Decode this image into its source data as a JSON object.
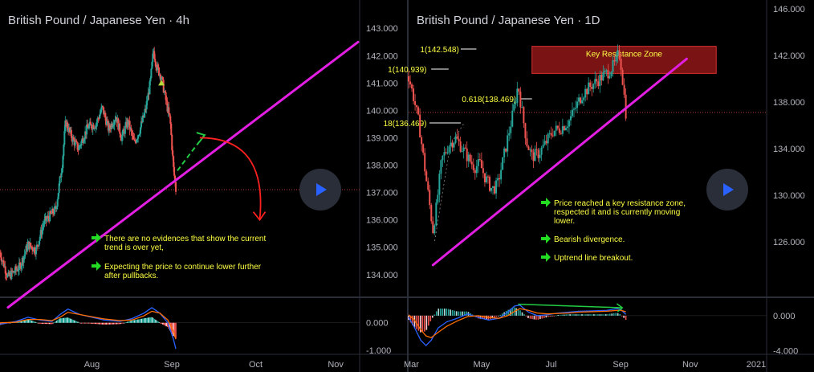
{
  "colors": {
    "background": "#000000",
    "panel_border": "#2a2e39",
    "axis_text": "#b2b5be",
    "title_text": "#d1d4dc",
    "candle_up": "#26a69a",
    "candle_down": "#ef5350",
    "trendline": "#e31ee3",
    "note_text": "#ffff44",
    "check_arrow": "#22dd22",
    "price_line": "#b83b3b",
    "macd": "#2962ff",
    "signal": "#ff6d00",
    "forecast_red": "#ff2020",
    "forecast_green": "#22cc44",
    "zone_fill": "#7a1414",
    "zone_border": "#d83030",
    "zone_text": "#ffff44",
    "fib_text": "#ffff44",
    "play_bg": "#2a2e39",
    "play_icon": "#2962ff"
  },
  "icons": {
    "play": "play-icon",
    "check": "check-arrow-icon"
  },
  "chart_data": [
    {
      "type": "candlestick",
      "title": "British Pound / Japanese Yen · 4h",
      "y_ticks": [
        "143.000",
        "142.000",
        "141.000",
        "140.000",
        "139.000",
        "138.000",
        "137.000",
        "136.000",
        "135.000",
        "134.000"
      ],
      "y_tick_values": [
        143,
        142,
        141,
        140,
        139,
        138,
        137,
        136,
        135,
        134
      ],
      "ylim": [
        133.2,
        143.8
      ],
      "x_ticks": [
        "Aug",
        "Sep",
        "Oct",
        "Nov"
      ],
      "x_tick_positions": [
        1.15,
        2.15,
        3.2,
        4.2
      ],
      "xlim": [
        0,
        4.5
      ],
      "last_price": 137.1,
      "trendline": [
        [
          0.1,
          132.8
        ],
        [
          4.48,
          142.5
        ]
      ],
      "series_path": [
        [
          0.0,
          134.8
        ],
        [
          0.1,
          133.9
        ],
        [
          0.25,
          134.3
        ],
        [
          0.35,
          135.1
        ],
        [
          0.45,
          134.9
        ],
        [
          0.55,
          135.9
        ],
        [
          0.7,
          136.4
        ],
        [
          0.78,
          138.1
        ],
        [
          0.82,
          139.6
        ],
        [
          0.9,
          139.0
        ],
        [
          0.98,
          138.6
        ],
        [
          1.1,
          139.4
        ],
        [
          1.2,
          139.5
        ],
        [
          1.28,
          140.1
        ],
        [
          1.36,
          139.3
        ],
        [
          1.45,
          139.8
        ],
        [
          1.52,
          139.0
        ],
        [
          1.6,
          139.6
        ],
        [
          1.68,
          138.8
        ],
        [
          1.75,
          139.3
        ],
        [
          1.82,
          140.0
        ],
        [
          1.88,
          141.0
        ],
        [
          1.92,
          142.2
        ],
        [
          1.96,
          141.6
        ],
        [
          2.02,
          141.2
        ],
        [
          2.08,
          140.3
        ],
        [
          2.13,
          139.6
        ],
        [
          2.17,
          137.9
        ],
        [
          2.2,
          137.1
        ]
      ],
      "up_arrow_marker": [
        2.02,
        141.0
      ],
      "forecast_green_path": [
        [
          2.22,
          137.8
        ],
        [
          2.4,
          138.5
        ],
        [
          2.56,
          139.1
        ]
      ],
      "forecast_red_arc": {
        "start": [
          2.5,
          139.0
        ],
        "control": [
          3.35,
          139.0
        ],
        "end": [
          3.25,
          136.0
        ]
      },
      "notes": [
        {
          "text_lines": [
            "There are no evidences that show the current",
            "trend is over yet,"
          ]
        },
        {
          "text_lines": [
            "Expecting the price to continue lower further",
            "after pullbacks."
          ]
        }
      ],
      "indicator": {
        "name": "MACD",
        "y_ticks": [
          "0.000",
          "-1.000"
        ],
        "y_tick_values": [
          0,
          -1
        ],
        "ylim": [
          -1.15,
          0.9
        ],
        "macd": [
          [
            0.0,
            -0.05
          ],
          [
            0.2,
            0.05
          ],
          [
            0.35,
            0.2
          ],
          [
            0.5,
            0.1
          ],
          [
            0.65,
            0.05
          ],
          [
            0.75,
            0.3
          ],
          [
            0.85,
            0.5
          ],
          [
            1.0,
            0.3
          ],
          [
            1.15,
            0.2
          ],
          [
            1.3,
            0.1
          ],
          [
            1.5,
            0.05
          ],
          [
            1.65,
            0.15
          ],
          [
            1.8,
            0.35
          ],
          [
            1.9,
            0.55
          ],
          [
            2.0,
            0.35
          ],
          [
            2.1,
            0.0
          ],
          [
            2.17,
            -0.6
          ],
          [
            2.2,
            -0.95
          ]
        ],
        "signal": [
          [
            0.0,
            0.0
          ],
          [
            0.2,
            0.02
          ],
          [
            0.35,
            0.12
          ],
          [
            0.5,
            0.12
          ],
          [
            0.65,
            0.08
          ],
          [
            0.75,
            0.2
          ],
          [
            0.85,
            0.38
          ],
          [
            1.0,
            0.3
          ],
          [
            1.15,
            0.22
          ],
          [
            1.3,
            0.14
          ],
          [
            1.5,
            0.08
          ],
          [
            1.65,
            0.1
          ],
          [
            1.8,
            0.25
          ],
          [
            1.9,
            0.42
          ],
          [
            2.0,
            0.35
          ],
          [
            2.1,
            0.1
          ],
          [
            2.17,
            -0.3
          ],
          [
            2.2,
            -0.6
          ]
        ]
      }
    },
    {
      "type": "candlestick",
      "title": "British Pound / Japanese Yen · 1D",
      "y_ticks": [
        "146.000",
        "142.000",
        "138.000",
        "134.000",
        "130.000",
        "126.000"
      ],
      "y_tick_values": [
        146,
        142,
        138,
        134,
        130,
        126
      ],
      "ylim": [
        121.3,
        146.2
      ],
      "x_ticks": [
        "Mar",
        "May",
        "Jul",
        "Sep",
        "Nov",
        "2021"
      ],
      "x_tick_positions": [
        0.08,
        2.1,
        4.1,
        6.1,
        8.1,
        10.0
      ],
      "xlim": [
        0,
        10.3
      ],
      "last_price": 137.1,
      "trendline": [
        [
          0.7,
          124.0
        ],
        [
          8.0,
          141.7
        ]
      ],
      "series_path": [
        [
          0.0,
          140.2
        ],
        [
          0.15,
          138.3
        ],
        [
          0.3,
          136.1
        ],
        [
          0.5,
          131.5
        ],
        [
          0.7,
          127.0
        ],
        [
          0.8,
          129.0
        ],
        [
          0.95,
          133.0
        ],
        [
          1.15,
          134.3
        ],
        [
          1.35,
          134.9
        ],
        [
          1.55,
          134.0
        ],
        [
          1.75,
          133.0
        ],
        [
          1.9,
          132.4
        ],
        [
          2.05,
          132.7
        ],
        [
          2.2,
          131.5
        ],
        [
          2.4,
          130.5
        ],
        [
          2.55,
          130.8
        ],
        [
          2.7,
          132.8
        ],
        [
          2.85,
          134.9
        ],
        [
          3.0,
          137.0
        ],
        [
          3.15,
          139.5
        ],
        [
          3.25,
          137.4
        ],
        [
          3.4,
          134.5
        ],
        [
          3.55,
          133.3
        ],
        [
          3.75,
          133.6
        ],
        [
          3.95,
          134.5
        ],
        [
          4.15,
          135.5
        ],
        [
          4.35,
          135.7
        ],
        [
          4.6,
          136.3
        ],
        [
          4.8,
          137.5
        ],
        [
          5.0,
          138.7
        ],
        [
          5.25,
          139.4
        ],
        [
          5.5,
          140.0
        ],
        [
          5.75,
          140.6
        ],
        [
          5.95,
          141.3
        ],
        [
          6.05,
          142.3
        ],
        [
          6.12,
          141.0
        ],
        [
          6.2,
          138.6
        ],
        [
          6.25,
          137.1
        ]
      ],
      "fib_levels": [
        {
          "label": "1(142.548)",
          "price": 142.548
        },
        {
          "label": "1(140.939)",
          "price": 140.939
        },
        {
          "label": "0.618(138.469)",
          "price": 138.469
        },
        {
          "label": "18(136.469)",
          "price": 136.469
        }
      ],
      "resistance_zone": {
        "label": "Key Resistance Zone",
        "x_range": [
          1.95,
          9.9
        ],
        "price_range": [
          141.0,
          142.5
        ]
      },
      "notes": [
        {
          "text_lines": [
            "Price reached a key resistance zone,",
            "respected it and is currently moving",
            "lower."
          ]
        },
        {
          "text_lines": [
            "Bearish divergence."
          ]
        },
        {
          "text_lines": [
            "Uptrend line breakout."
          ]
        }
      ],
      "indicator": {
        "name": "MACD",
        "y_ticks": [
          "0.000",
          "-4.000"
        ],
        "y_tick_values": [
          0,
          -4
        ],
        "ylim": [
          -4.4,
          2.0
        ],
        "divergence_line": [
          [
            3.15,
            1.3
          ],
          [
            6.15,
            0.9
          ]
        ],
        "macd": [
          [
            0.0,
            -0.2
          ],
          [
            0.15,
            -1.2
          ],
          [
            0.35,
            -2.8
          ],
          [
            0.5,
            -3.4
          ],
          [
            0.65,
            -2.8
          ],
          [
            0.85,
            -1.4
          ],
          [
            1.1,
            -0.7
          ],
          [
            1.4,
            -0.3
          ],
          [
            1.7,
            0.2
          ],
          [
            2.0,
            -0.2
          ],
          [
            2.3,
            -0.5
          ],
          [
            2.6,
            -0.3
          ],
          [
            2.85,
            0.4
          ],
          [
            3.05,
            1.1
          ],
          [
            3.2,
            1.2
          ],
          [
            3.45,
            0.4
          ],
          [
            3.7,
            0.0
          ],
          [
            4.0,
            0.1
          ],
          [
            4.3,
            0.3
          ],
          [
            4.6,
            0.4
          ],
          [
            4.9,
            0.5
          ],
          [
            5.3,
            0.55
          ],
          [
            5.7,
            0.6
          ],
          [
            6.0,
            0.8
          ],
          [
            6.1,
            0.7
          ],
          [
            6.25,
            0.15
          ]
        ],
        "signal": [
          [
            0.0,
            0.1
          ],
          [
            0.15,
            -0.4
          ],
          [
            0.35,
            -1.6
          ],
          [
            0.5,
            -2.3
          ],
          [
            0.65,
            -2.5
          ],
          [
            0.85,
            -1.9
          ],
          [
            1.1,
            -1.2
          ],
          [
            1.4,
            -0.6
          ],
          [
            1.7,
            -0.1
          ],
          [
            2.0,
            0.0
          ],
          [
            2.3,
            -0.2
          ],
          [
            2.6,
            -0.3
          ],
          [
            2.85,
            0.0
          ],
          [
            3.05,
            0.5
          ],
          [
            3.2,
            0.8
          ],
          [
            3.45,
            0.6
          ],
          [
            3.7,
            0.3
          ],
          [
            4.0,
            0.2
          ],
          [
            4.3,
            0.25
          ],
          [
            4.6,
            0.3
          ],
          [
            4.9,
            0.4
          ],
          [
            5.3,
            0.45
          ],
          [
            5.7,
            0.5
          ],
          [
            6.0,
            0.6
          ],
          [
            6.1,
            0.62
          ],
          [
            6.25,
            0.45
          ]
        ]
      }
    }
  ]
}
